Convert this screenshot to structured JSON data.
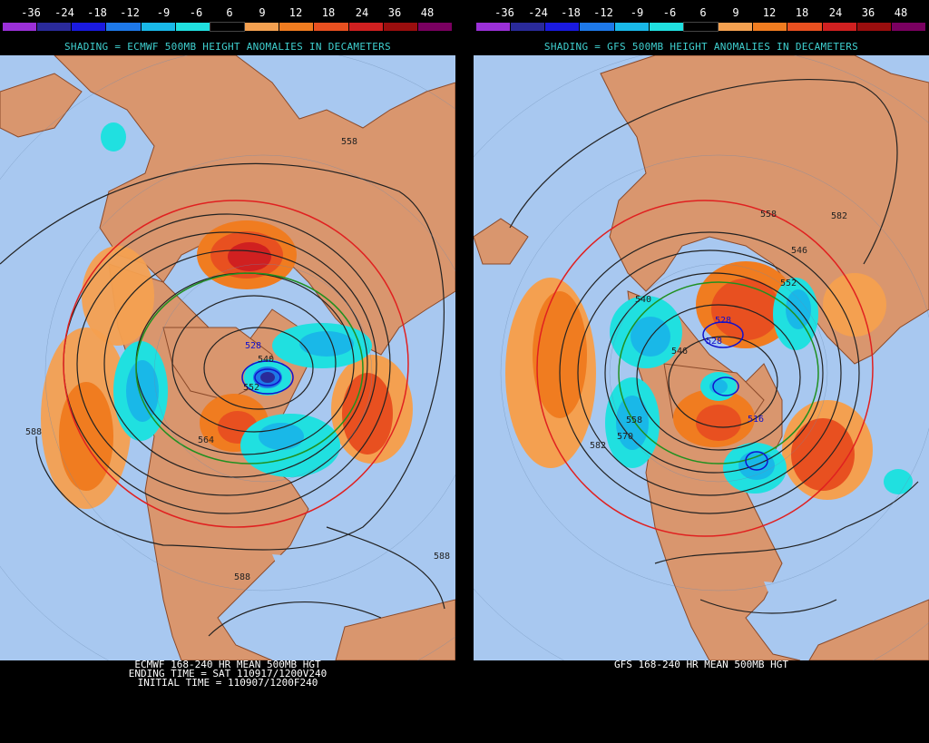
{
  "colorbar": {
    "ticks": [
      "-36",
      "-24",
      "-18",
      "-12",
      "-9",
      "-6",
      "6",
      "9",
      "12",
      "18",
      "24",
      "36",
      "48"
    ],
    "colors": [
      "#9b30d8",
      "#2a2a9a",
      "#1a1ae0",
      "#1e78e8",
      "#19b8e8",
      "#20e0e0",
      "#000000",
      "#f4a050",
      "#f07c20",
      "#e85020",
      "#d02020",
      "#9a0e0e",
      "#7a0060"
    ]
  },
  "left": {
    "subtitle": "SHADING = ECMWF 500MB HEIGHT ANOMALIES IN DECAMETERS",
    "contour_labels": [
      "558",
      "528",
      "540",
      "552",
      "564",
      "588",
      "588",
      "588"
    ],
    "caption": [
      "ECMWF 168-240 HR MEAN 500MB HGT",
      "ENDING TIME = SAT 110917/1200V240",
      "INITIAL TIME = 110907/1200F240"
    ]
  },
  "right": {
    "subtitle": "SHADING = GFS 500MB HEIGHT ANOMALIES IN DECAMETERS",
    "contour_labels": [
      "558",
      "582",
      "546",
      "540",
      "528",
      "546",
      "558",
      "582",
      "570",
      "528",
      "516",
      "552"
    ],
    "caption": [
      "GFS 168-240 HR MEAN 500MB HGT"
    ]
  }
}
